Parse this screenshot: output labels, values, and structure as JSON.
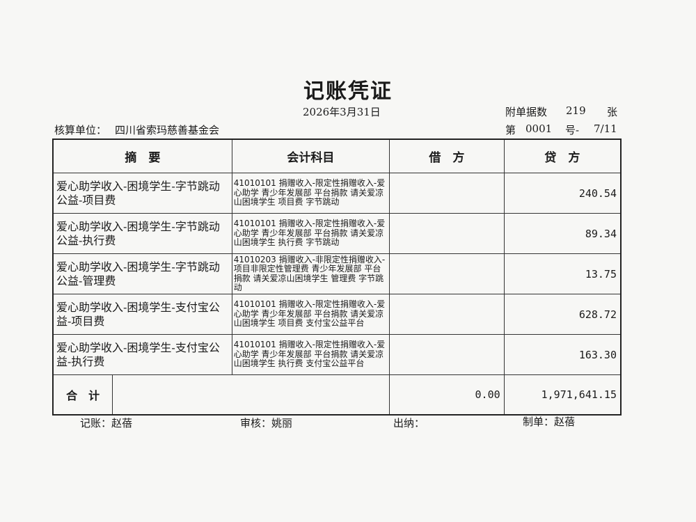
{
  "title": "记账凭证",
  "date": "2026年3月31日",
  "attachments": {
    "label": "附单据数",
    "count": "219",
    "unit": "张"
  },
  "unit": {
    "label": "核算单位：",
    "name": "四川省索玛慈善基金会"
  },
  "voucher_no": {
    "prefix": "第",
    "number": "0001",
    "suffix": "号-",
    "page": "7/11"
  },
  "headers": {
    "summary": "摘　要",
    "account": "会计科目",
    "debit": "借　方",
    "credit": "贷　方"
  },
  "rows": [
    {
      "summary": "爱心助学收入-困境学生-字节跳动公益-项目费",
      "account": "41010101 捐赠收入-限定性捐赠收入-爱心助学 青少年发展部 平台捐款 请关爱凉山困境学生 项目费 字节跳动",
      "debit": "",
      "credit": "240.54"
    },
    {
      "summary": "爱心助学收入-困境学生-字节跳动公益-执行费",
      "account": "41010101 捐赠收入-限定性捐赠收入-爱心助学 青少年发展部 平台捐款 请关爱凉山困境学生 执行费 字节跳动",
      "debit": "",
      "credit": "89.34"
    },
    {
      "summary": "爱心助学收入-困境学生-字节跳动公益-管理费",
      "account": "41010203 捐赠收入-非限定性捐赠收入-项目非限定性管理费 青少年发展部 平台捐款 请关爱凉山困境学生 管理费 字节跳动",
      "debit": "",
      "credit": "13.75"
    },
    {
      "summary": "爱心助学收入-困境学生-支付宝公益-项目费",
      "account": "41010101 捐赠收入-限定性捐赠收入-爱心助学 青少年发展部 平台捐款 请关爱凉山困境学生 项目费 支付宝公益平台",
      "debit": "",
      "credit": "628.72"
    },
    {
      "summary": "爱心助学收入-困境学生-支付宝公益-执行费",
      "account": "41010101 捐赠收入-限定性捐赠收入-爱心助学 青少年发展部 平台捐款 请关爱凉山困境学生 执行费 支付宝公益平台",
      "debit": "",
      "credit": "163.30"
    }
  ],
  "total": {
    "label": "合　计",
    "debit": "0.00",
    "credit": "1,971,641.15"
  },
  "footer": {
    "bookkeeper": "记账：赵蓓",
    "reviewer": "审核：姚丽",
    "cashier": "出纳：",
    "preparer": "制单：赵蓓"
  }
}
